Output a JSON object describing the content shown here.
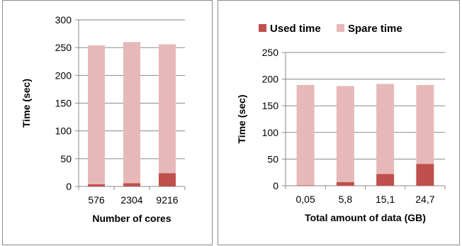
{
  "charts": {
    "left": {
      "chart_data": {
        "type": "bar",
        "stacked": true,
        "categories": [
          "576",
          "2304",
          "9216"
        ],
        "series": [
          {
            "name": "Used time",
            "values": [
              4,
              6,
              24
            ]
          },
          {
            "name": "Spare time",
            "values": [
              250,
              254,
              232
            ]
          }
        ],
        "xlabel": "Number of cores",
        "ylabel": "Time (sec)",
        "ylim": [
          0,
          300
        ],
        "yticks": [
          "0",
          "50",
          "100",
          "150",
          "200",
          "250",
          "300"
        ],
        "grid": true
      }
    },
    "right": {
      "chart_data": {
        "type": "bar",
        "stacked": true,
        "categories": [
          "0,05",
          "5,8",
          "15,1",
          "24,7"
        ],
        "series": [
          {
            "name": "Used time",
            "values": [
              1,
              7,
              22,
              41
            ]
          },
          {
            "name": "Spare time",
            "values": [
              188,
              180,
              169,
              148
            ]
          }
        ],
        "xlabel": "Total amount of data (GB)",
        "ylabel": "Time (sec)",
        "ylim": [
          0,
          250
        ],
        "yticks": [
          "0",
          "50",
          "100",
          "150",
          "200",
          "250"
        ],
        "grid": true,
        "legend": "top"
      }
    }
  },
  "colors": {
    "used": "#c0504d",
    "spare": "#e6b9b8",
    "grid": "#8a8a8a",
    "axis": "#8a8a8a"
  }
}
